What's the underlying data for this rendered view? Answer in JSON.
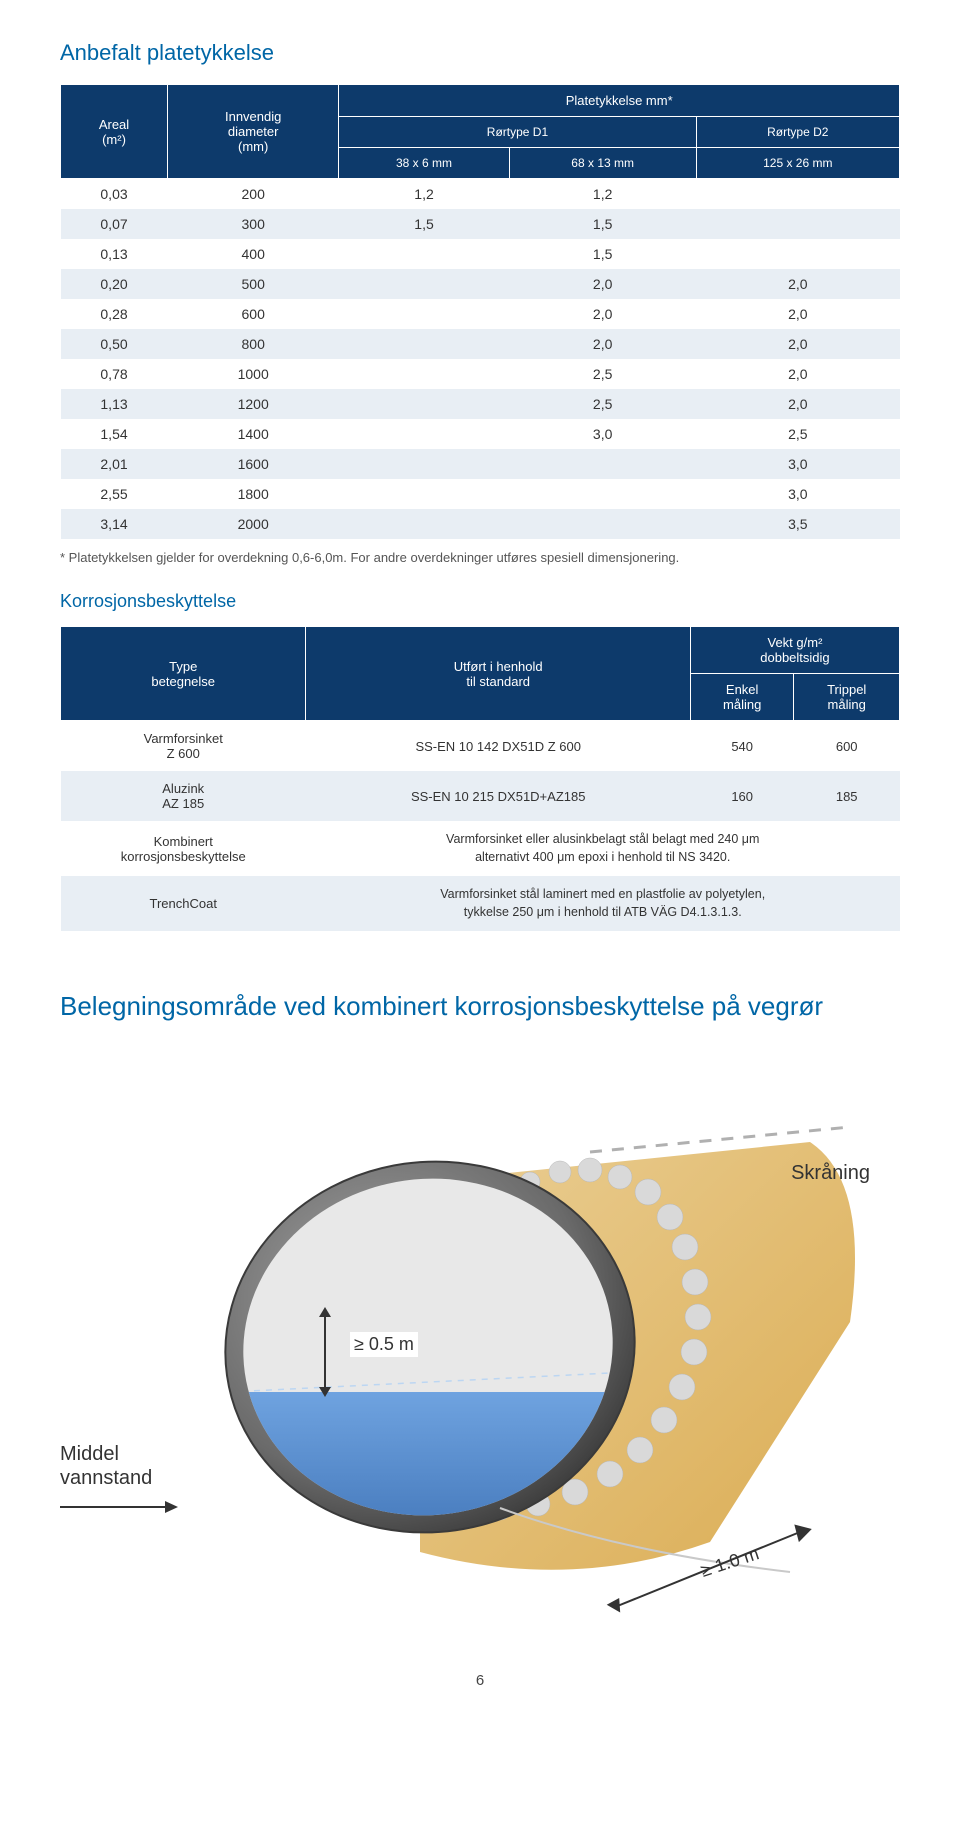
{
  "title1": "Anbefalt platetykkelse",
  "table1": {
    "headers": {
      "areal": "Areal\n(m²)",
      "diameter": "Innvendig\ndiameter\n(mm)",
      "plate": "Platetykkelse mm*",
      "d1": "Rørtype D1",
      "d2": "Rørtype D2",
      "c1": "38 x 6 mm",
      "c2": "68 x 13 mm",
      "c3": "125 x 26 mm"
    },
    "rows": [
      [
        "0,03",
        "200",
        "1,2",
        "1,2",
        ""
      ],
      [
        "0,07",
        "300",
        "1,5",
        "1,5",
        ""
      ],
      [
        "0,13",
        "400",
        "",
        "1,5",
        ""
      ],
      [
        "0,20",
        "500",
        "",
        "2,0",
        "2,0"
      ],
      [
        "0,28",
        "600",
        "",
        "2,0",
        "2,0"
      ],
      [
        "0,50",
        "800",
        "",
        "2,0",
        "2,0"
      ],
      [
        "0,78",
        "1000",
        "",
        "2,5",
        "2,0"
      ],
      [
        "1,13",
        "1200",
        "",
        "2,5",
        "2,0"
      ],
      [
        "1,54",
        "1400",
        "",
        "3,0",
        "2,5"
      ],
      [
        "2,01",
        "1600",
        "",
        "",
        "3,0"
      ],
      [
        "2,55",
        "1800",
        "",
        "",
        "3,0"
      ],
      [
        "3,14",
        "2000",
        "",
        "",
        "3,5"
      ]
    ]
  },
  "footnote": "* Platetykkelsen gjelder for overdekning 0,6-6,0m. For andre overdekninger utføres spesiell dimensjonering.",
  "title2": "Korrosjonsbeskyttelse",
  "table2": {
    "headers": {
      "type": "Type\nbetegnelse",
      "std": "Utført i henhold\ntil standard",
      "vekt": "Vekt g/m²\ndobbeltsidig",
      "enkel": "Enkel\nmåling",
      "trippel": "Trippel\nmåling"
    },
    "rows": [
      {
        "type": "Varmforsinket\nZ 600",
        "std": "SS-EN 10 142 DX51D Z 600",
        "enkel": "540",
        "trippel": "600"
      },
      {
        "type": "Aluzink\nAZ 185",
        "std": "SS-EN 10 215 DX51D+AZ185",
        "enkel": "160",
        "trippel": "185"
      },
      {
        "type": "Kombinert\nkorrosjonsbeskyttelse",
        "desc": "Varmforsinket eller alusinkbelagt stål belagt med 240 μm\nalternativt 400 μm epoxi i henhold til NS 3420."
      },
      {
        "type": "TrenchCoat",
        "desc": "Varmforsinket stål laminert med en plastfolie av polyetylen,\ntykkelse 250 μm i henhold til ATB VÄG D4.1.3.1.3."
      }
    ]
  },
  "title3": "Belegningsområde ved kombinert korrosjonsbeskyttelse på vegrør",
  "diagram": {
    "skraning": "Skråning",
    "middel": "Middel\nvannstand",
    "h05": "≥ 0.5 m",
    "l10": "≥ 1.0 m",
    "colors": {
      "water": "#3d7ac6",
      "pipe_dark": "#5a5a5a",
      "pipe_light": "#bfbfbf",
      "sand": "#d9a84a",
      "sand_light": "#e9cc8f",
      "bead": "#d9d9d9"
    }
  },
  "page": "6"
}
